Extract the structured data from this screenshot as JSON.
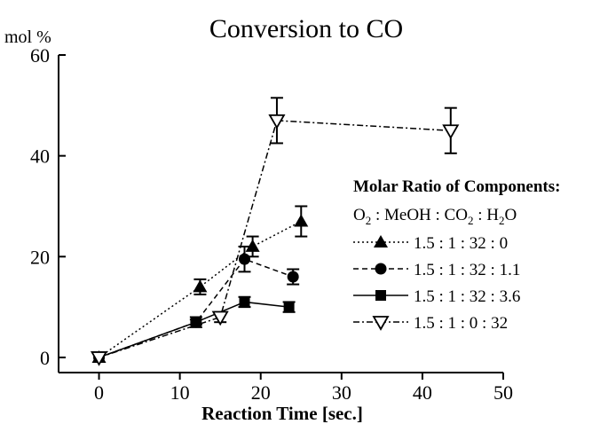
{
  "chart_data": {
    "type": "line",
    "title": "Conversion to CO",
    "xlabel": "Reaction Time [sec.]",
    "ylabel": "mol %",
    "xlim": [
      -5,
      50
    ],
    "ylim": [
      -3,
      60
    ],
    "xticks": [
      0,
      10,
      20,
      30,
      40,
      50
    ],
    "yticks": [
      0,
      20,
      40,
      60
    ],
    "grid": false,
    "legend": {
      "placement": "right",
      "title": "Molar Ratio of Components:",
      "header": [
        "O",
        "2",
        " : MeOH  : CO",
        "2",
        " :  H",
        "2",
        "O"
      ]
    },
    "series": [
      {
        "name": "1.5 :  1 : 32 :   0",
        "marker": "triangle-up",
        "dash": "dotted",
        "points": [
          {
            "x": 0,
            "y": 0,
            "err": 0
          },
          {
            "x": 12.5,
            "y": 14,
            "err": 1.5
          },
          {
            "x": 19,
            "y": 22,
            "err": 2
          },
          {
            "x": 25,
            "y": 27,
            "err": 3
          }
        ]
      },
      {
        "name": "1.5 :  1 : 32 :   1.1",
        "marker": "circle",
        "dash": "dashed",
        "points": [
          {
            "x": 0,
            "y": 0,
            "err": 0
          },
          {
            "x": 12,
            "y": 7,
            "err": 1
          },
          {
            "x": 18,
            "y": 19.5,
            "err": 2.5
          },
          {
            "x": 24,
            "y": 16,
            "err": 1.5
          }
        ]
      },
      {
        "name": "1.5 :  1 : 32 :   3.6",
        "marker": "square",
        "dash": "solid",
        "points": [
          {
            "x": 0,
            "y": 0,
            "err": 0
          },
          {
            "x": 12,
            "y": 7,
            "err": 0.5
          },
          {
            "x": 18,
            "y": 11,
            "err": 1
          },
          {
            "x": 23.5,
            "y": 10,
            "err": 1
          }
        ]
      },
      {
        "name": "1.5 :  1 :   0 : 32",
        "marker": "triangle-down-open",
        "dash": "dashdot",
        "points": [
          {
            "x": 0,
            "y": 0,
            "err": 0
          },
          {
            "x": 15,
            "y": 8,
            "err": 1
          },
          {
            "x": 22,
            "y": 47,
            "err": 4.5
          },
          {
            "x": 43.5,
            "y": 45,
            "err": 4.5
          }
        ]
      }
    ]
  }
}
